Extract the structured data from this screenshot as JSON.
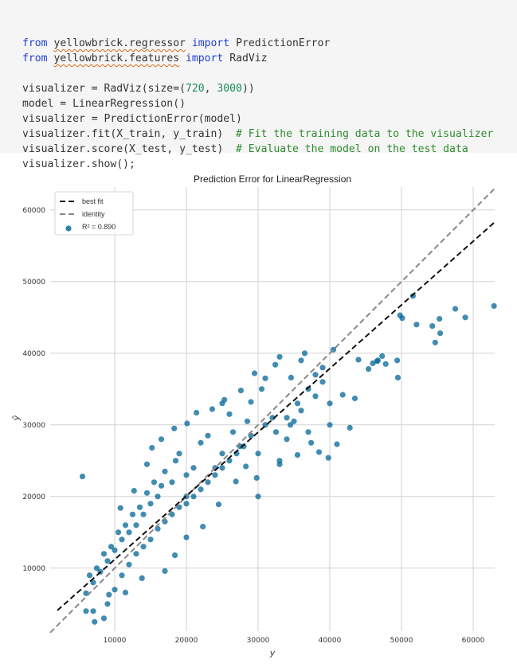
{
  "code": {
    "lines": [
      [
        {
          "t": "from",
          "c": "kw"
        },
        {
          "t": " "
        },
        {
          "t": "yellowbrick.regressor",
          "c": "wavy"
        },
        {
          "t": " "
        },
        {
          "t": "import",
          "c": "kw"
        },
        {
          "t": " PredictionError"
        }
      ],
      [
        {
          "t": "from",
          "c": "kw"
        },
        {
          "t": " "
        },
        {
          "t": "yellowbrick.features",
          "c": "wavy"
        },
        {
          "t": " "
        },
        {
          "t": "import",
          "c": "kw"
        },
        {
          "t": " RadViz"
        }
      ],
      [],
      [
        {
          "t": "visualizer = RadViz(size=("
        },
        {
          "t": "720",
          "c": "str"
        },
        {
          "t": ", "
        },
        {
          "t": "3000",
          "c": "str"
        },
        {
          "t": "))"
        }
      ],
      [
        {
          "t": "model = LinearRegression()"
        }
      ],
      [
        {
          "t": "visualizer = PredictionError(model)"
        }
      ],
      [
        {
          "t": "visualizer.fit(X_train, y_train)  "
        },
        {
          "t": "# Fit the training data to the visualizer",
          "c": "com"
        }
      ],
      [
        {
          "t": "visualizer.score(X_test, y_test)  "
        },
        {
          "t": "# Evaluate the model on the test data",
          "c": "com"
        }
      ],
      [
        {
          "t": "visualizer.show();"
        }
      ]
    ]
  },
  "chart_data": {
    "type": "scatter",
    "title": "Prediction Error for LinearRegression",
    "xlabel": "y",
    "ylabel": "ŷ",
    "xlim": [
      1000,
      63000
    ],
    "ylim": [
      1200,
      63200
    ],
    "x_ticks": [
      10000,
      20000,
      30000,
      40000,
      50000,
      60000
    ],
    "y_ticks": [
      10000,
      20000,
      30000,
      40000,
      50000,
      60000
    ],
    "grid": true,
    "legend": {
      "placement": "top-left",
      "entries": [
        {
          "label": "best fit",
          "style": "dashed",
          "color": "#111111"
        },
        {
          "label": "identity",
          "style": "dashed",
          "color": "#888888"
        },
        {
          "label": "R² = 0.890",
          "style": "marker",
          "color": "#0b6b9b"
        }
      ]
    },
    "r2": 0.89,
    "best_fit": {
      "points": [
        [
          2000,
          4100
        ],
        [
          63000,
          58300
        ]
      ]
    },
    "identity": {
      "points": [
        [
          1000,
          1000
        ],
        [
          63000,
          63000
        ]
      ]
    },
    "marker_color": "#0b6b9b",
    "points": [
      [
        5500,
        22800
      ],
      [
        14500,
        24500
      ],
      [
        20000,
        20000
      ],
      [
        30000,
        20000
      ],
      [
        62900,
        46600
      ],
      [
        58900,
        45000
      ],
      [
        57500,
        46200
      ],
      [
        55300,
        44800
      ],
      [
        55400,
        42800
      ],
      [
        54700,
        41500
      ],
      [
        54300,
        43800
      ],
      [
        52100,
        44000
      ],
      [
        49800,
        45300
      ],
      [
        49400,
        39000
      ],
      [
        50100,
        44900
      ],
      [
        49500,
        36600
      ],
      [
        51600,
        48000
      ],
      [
        47800,
        38500
      ],
      [
        47300,
        39600
      ],
      [
        46700,
        39000
      ],
      [
        46600,
        38900
      ],
      [
        46000,
        38600
      ],
      [
        45400,
        37800
      ],
      [
        44000,
        39100
      ],
      [
        42800,
        29600
      ],
      [
        41000,
        27300
      ],
      [
        40500,
        40500
      ],
      [
        40000,
        33000
      ],
      [
        40000,
        30000
      ],
      [
        39800,
        25400
      ],
      [
        39000,
        36000
      ],
      [
        38500,
        26200
      ],
      [
        38000,
        34000
      ],
      [
        37000,
        29000
      ],
      [
        36500,
        40000
      ],
      [
        36000,
        39000
      ],
      [
        35500,
        33000
      ],
      [
        34500,
        30000
      ],
      [
        34000,
        28000
      ],
      [
        33000,
        39500
      ],
      [
        33000,
        25000
      ],
      [
        32000,
        31000
      ],
      [
        31000,
        36500
      ],
      [
        30500,
        35000
      ],
      [
        30000,
        26000
      ],
      [
        29000,
        33200
      ],
      [
        28500,
        30500
      ],
      [
        27500,
        27000
      ],
      [
        26500,
        29000
      ],
      [
        26000,
        31500
      ],
      [
        25000,
        33000
      ],
      [
        25000,
        26000
      ],
      [
        24000,
        24000
      ],
      [
        23000,
        28500
      ],
      [
        22000,
        27500
      ],
      [
        21000,
        24000
      ],
      [
        20000,
        23000
      ],
      [
        19000,
        26000
      ],
      [
        18500,
        25000
      ],
      [
        18000,
        22000
      ],
      [
        17000,
        23500
      ],
      [
        16500,
        21500
      ],
      [
        16000,
        20000
      ],
      [
        15500,
        22000
      ],
      [
        15000,
        19000
      ],
      [
        14500,
        20500
      ],
      [
        14000,
        17500
      ],
      [
        13500,
        18500
      ],
      [
        13000,
        16000
      ],
      [
        12500,
        17500
      ],
      [
        12000,
        15000
      ],
      [
        11500,
        16000
      ],
      [
        11000,
        14000
      ],
      [
        10500,
        15000
      ],
      [
        10000,
        12500
      ],
      [
        9500,
        13000
      ],
      [
        9000,
        11000
      ],
      [
        8500,
        12000
      ],
      [
        8000,
        9500
      ],
      [
        7500,
        10000
      ],
      [
        7000,
        8000
      ],
      [
        6500,
        9000
      ],
      [
        6000,
        6500
      ],
      [
        6000,
        4000
      ],
      [
        7000,
        4000
      ],
      [
        7200,
        2500
      ],
      [
        8500,
        3000
      ],
      [
        9000,
        5000
      ],
      [
        10000,
        7000
      ],
      [
        11000,
        9000
      ],
      [
        12000,
        10500
      ],
      [
        13000,
        12000
      ],
      [
        14000,
        13000
      ],
      [
        15000,
        14000
      ],
      [
        16000,
        15500
      ],
      [
        17000,
        16500
      ],
      [
        18000,
        17500
      ],
      [
        19000,
        18500
      ],
      [
        20000,
        19000
      ],
      [
        21000,
        20000
      ],
      [
        22000,
        21000
      ],
      [
        23000,
        22000
      ],
      [
        24000,
        23000
      ],
      [
        25000,
        24000
      ],
      [
        26000,
        25000
      ],
      [
        27000,
        26000
      ],
      [
        28000,
        27000
      ],
      [
        29000,
        28500
      ],
      [
        31000,
        30000
      ],
      [
        32500,
        29000
      ],
      [
        34000,
        31000
      ],
      [
        35000,
        30500
      ],
      [
        36000,
        32000
      ],
      [
        37000,
        35000
      ],
      [
        38000,
        37000
      ],
      [
        39000,
        38000
      ],
      [
        10800,
        18400
      ],
      [
        12700,
        20800
      ],
      [
        17000,
        9600
      ],
      [
        18400,
        11800
      ],
      [
        13800,
        8600
      ],
      [
        11500,
        6600
      ],
      [
        9200,
        6300
      ],
      [
        20000,
        14300
      ],
      [
        22300,
        15800
      ],
      [
        24500,
        18900
      ],
      [
        26900,
        22100
      ],
      [
        28300,
        24200
      ],
      [
        29800,
        22600
      ],
      [
        33000,
        24500
      ],
      [
        35500,
        25800
      ],
      [
        37400,
        27500
      ],
      [
        41800,
        34200
      ],
      [
        43500,
        33700
      ],
      [
        15200,
        26800
      ],
      [
        16500,
        28000
      ],
      [
        18300,
        29500
      ],
      [
        20100,
        30200
      ],
      [
        21400,
        31700
      ],
      [
        23600,
        32200
      ],
      [
        25300,
        33500
      ],
      [
        27600,
        34800
      ],
      [
        29500,
        37200
      ],
      [
        32400,
        38400
      ],
      [
        34600,
        36600
      ]
    ]
  }
}
